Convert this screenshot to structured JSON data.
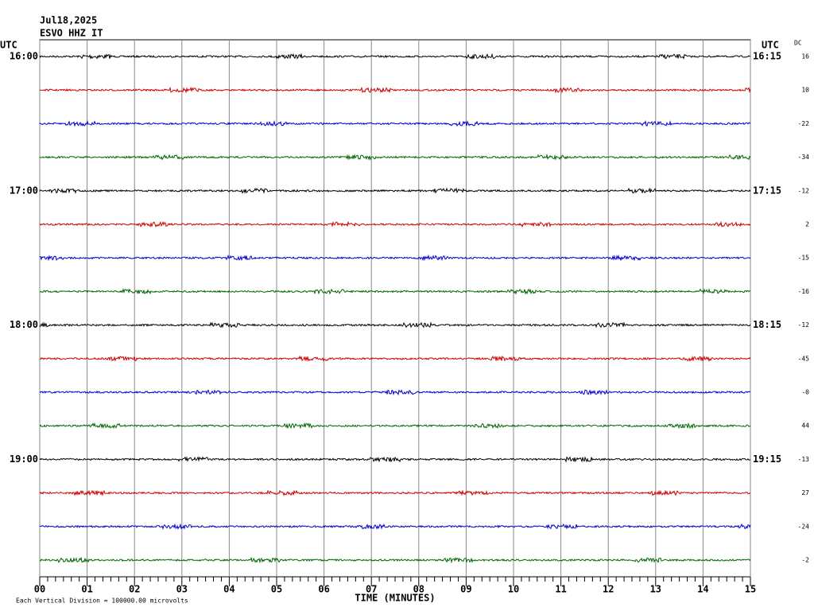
{
  "header": {
    "date": "Jul18,2025",
    "station": "ESVO HHZ IT"
  },
  "chart_data": {
    "type": "helicorder",
    "left_axis_label": "UTC",
    "right_axis_label": "UTC",
    "dc_label": "DC",
    "left_times": [
      "16:00",
      null,
      null,
      null,
      "17:00",
      null,
      null,
      null,
      "18:00",
      null,
      null,
      null,
      "19:00",
      null,
      null,
      null
    ],
    "right_times": [
      "16:15",
      null,
      null,
      null,
      "17:15",
      null,
      null,
      null,
      "18:15",
      null,
      null,
      null,
      "19:15",
      null,
      null,
      null
    ],
    "dc_offsets": [
      "16",
      "10",
      "-22",
      "-34",
      "-12",
      "2",
      "-15",
      "-16",
      "-12",
      "-45",
      "-0",
      "44",
      "-13",
      "27",
      "-24",
      "-2"
    ],
    "trace_colors": [
      "#000000",
      "#cc0000",
      "#0000cc",
      "#006600"
    ],
    "xlim": [
      0,
      15
    ],
    "xticks": [
      {
        "value": 0,
        "label": "00"
      },
      {
        "value": 1,
        "label": "01"
      },
      {
        "value": 2,
        "label": "02"
      },
      {
        "value": 3,
        "label": "03"
      },
      {
        "value": 4,
        "label": "04"
      },
      {
        "value": 5,
        "label": "05"
      },
      {
        "value": 6,
        "label": "06"
      },
      {
        "value": 7,
        "label": "07"
      },
      {
        "value": 8,
        "label": "08"
      },
      {
        "value": 9,
        "label": "09"
      },
      {
        "value": 10,
        "label": "10"
      },
      {
        "value": 11,
        "label": "11"
      },
      {
        "value": 12,
        "label": "12"
      },
      {
        "value": 13,
        "label": "13"
      },
      {
        "value": 14,
        "label": "14"
      },
      {
        "value": 15,
        "label": "15"
      }
    ],
    "xlabel": "TIME (MINUTES)",
    "footnote": "Each Vertical Division = 100000.00 microvolts"
  }
}
